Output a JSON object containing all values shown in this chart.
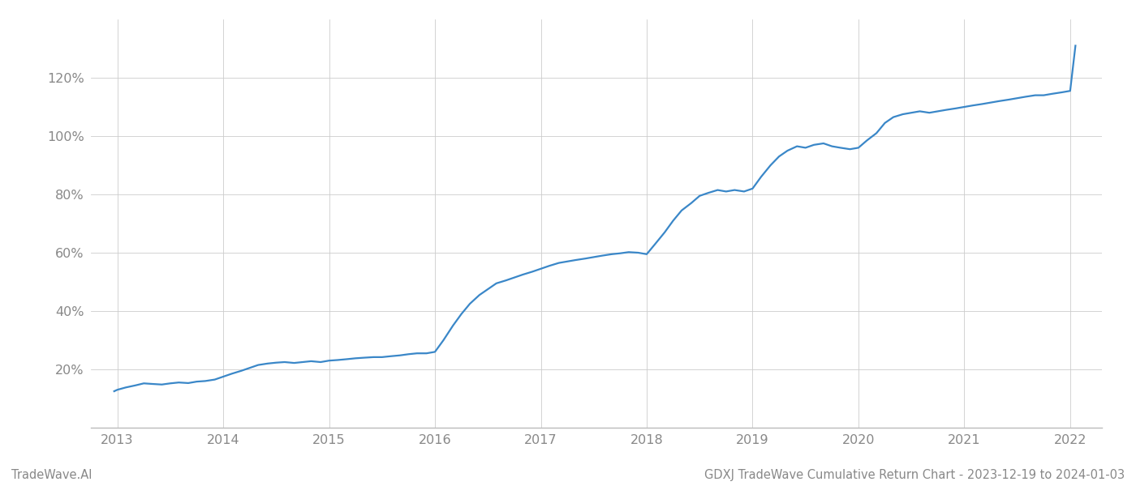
{
  "title": "GDXJ TradeWave Cumulative Return Chart - 2023-12-19 to 2024-01-03",
  "watermark": "TradeWave.AI",
  "line_color": "#3a87c8",
  "background_color": "#ffffff",
  "grid_color": "#cccccc",
  "x_values": [
    2012.97,
    2013.0,
    2013.08,
    2013.17,
    2013.25,
    2013.33,
    2013.42,
    2013.5,
    2013.58,
    2013.67,
    2013.75,
    2013.83,
    2013.92,
    2014.0,
    2014.08,
    2014.17,
    2014.25,
    2014.33,
    2014.42,
    2014.5,
    2014.58,
    2014.67,
    2014.75,
    2014.83,
    2014.92,
    2015.0,
    2015.08,
    2015.17,
    2015.25,
    2015.33,
    2015.42,
    2015.5,
    2015.58,
    2015.67,
    2015.75,
    2015.83,
    2015.92,
    2016.0,
    2016.08,
    2016.17,
    2016.25,
    2016.33,
    2016.42,
    2016.5,
    2016.58,
    2016.67,
    2016.75,
    2016.83,
    2016.92,
    2017.0,
    2017.08,
    2017.17,
    2017.25,
    2017.33,
    2017.42,
    2017.5,
    2017.58,
    2017.67,
    2017.75,
    2017.83,
    2017.92,
    2018.0,
    2018.08,
    2018.17,
    2018.25,
    2018.33,
    2018.42,
    2018.5,
    2018.58,
    2018.67,
    2018.75,
    2018.83,
    2018.92,
    2019.0,
    2019.08,
    2019.17,
    2019.25,
    2019.33,
    2019.42,
    2019.5,
    2019.58,
    2019.67,
    2019.75,
    2019.83,
    2019.92,
    2020.0,
    2020.08,
    2020.17,
    2020.25,
    2020.33,
    2020.42,
    2020.5,
    2020.58,
    2020.67,
    2020.75,
    2020.83,
    2020.92,
    2021.0,
    2021.08,
    2021.17,
    2021.25,
    2021.33,
    2021.42,
    2021.5,
    2021.58,
    2021.67,
    2021.75,
    2021.83,
    2021.92,
    2022.0,
    2022.05
  ],
  "y_values": [
    12.5,
    13.0,
    13.8,
    14.5,
    15.2,
    15.0,
    14.8,
    15.2,
    15.5,
    15.3,
    15.8,
    16.0,
    16.5,
    17.5,
    18.5,
    19.5,
    20.5,
    21.5,
    22.0,
    22.3,
    22.5,
    22.2,
    22.5,
    22.8,
    22.5,
    23.0,
    23.2,
    23.5,
    23.8,
    24.0,
    24.2,
    24.2,
    24.5,
    24.8,
    25.2,
    25.5,
    25.5,
    26.0,
    30.0,
    35.0,
    39.0,
    42.5,
    45.5,
    47.5,
    49.5,
    50.5,
    51.5,
    52.5,
    53.5,
    54.5,
    55.5,
    56.5,
    57.0,
    57.5,
    58.0,
    58.5,
    59.0,
    59.5,
    59.8,
    60.2,
    60.0,
    59.5,
    63.0,
    67.0,
    71.0,
    74.5,
    77.0,
    79.5,
    80.5,
    81.5,
    81.0,
    81.5,
    81.0,
    82.0,
    86.0,
    90.0,
    93.0,
    95.0,
    96.5,
    96.0,
    97.0,
    97.5,
    96.5,
    96.0,
    95.5,
    96.0,
    98.5,
    101.0,
    104.5,
    106.5,
    107.5,
    108.0,
    108.5,
    108.0,
    108.5,
    109.0,
    109.5,
    110.0,
    110.5,
    111.0,
    111.5,
    112.0,
    112.5,
    113.0,
    113.5,
    114.0,
    114.0,
    114.5,
    115.0,
    115.5,
    131.0
  ],
  "yticks": [
    20,
    40,
    60,
    80,
    100,
    120
  ],
  "ytick_labels": [
    "20%",
    "40%",
    "60%",
    "80%",
    "100%",
    "120%"
  ],
  "xticks": [
    2013,
    2014,
    2015,
    2016,
    2017,
    2018,
    2019,
    2020,
    2021,
    2022
  ],
  "xlim": [
    2012.75,
    2022.3
  ],
  "ylim": [
    0,
    140
  ],
  "line_width": 1.6,
  "axis_label_color": "#888888",
  "spine_color": "#bbbbbb",
  "title_color": "#888888",
  "watermark_color": "#888888",
  "title_fontsize": 10.5,
  "tick_fontsize": 11.5,
  "watermark_fontsize": 10.5
}
